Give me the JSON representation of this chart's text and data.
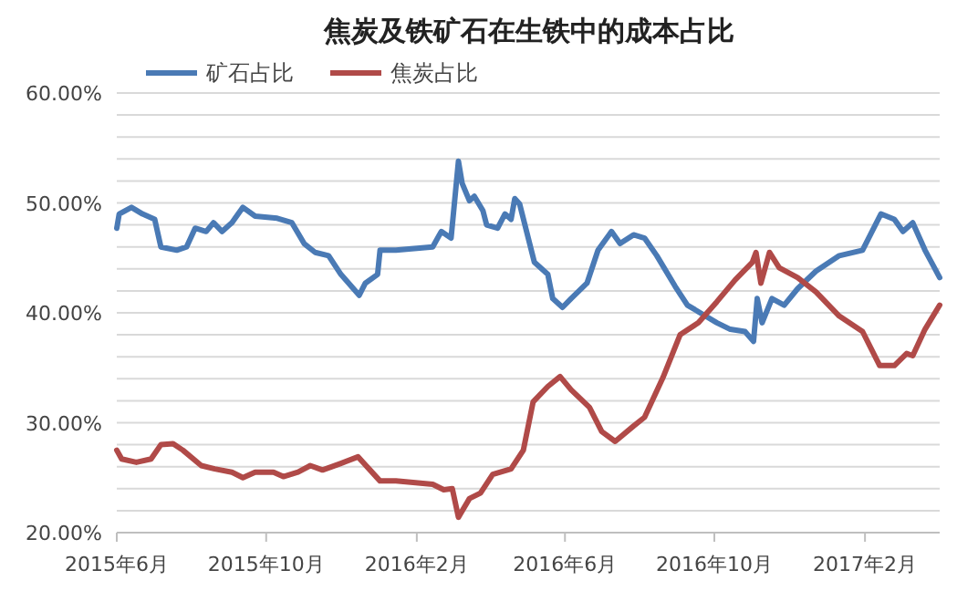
{
  "chart_data": {
    "type": "line",
    "title": "焦炭及铁矿石在生铁中的成本占比",
    "legend": "top",
    "grid": "y",
    "line_style": "solid",
    "marker": "none",
    "xlim": [
      "2015-06-01",
      "2017-04-03"
    ],
    "xticks": [
      {
        "value": "2015-06-01",
        "label": "2015年6月"
      },
      {
        "value": "2015-10-01",
        "label": "2015年10月"
      },
      {
        "value": "2016-02-01",
        "label": "2016年2月"
      },
      {
        "value": "2016-06-01",
        "label": "2016年6月"
      },
      {
        "value": "2016-10-01",
        "label": "2016年10月"
      },
      {
        "value": "2017-02-01",
        "label": "2017年2月"
      }
    ],
    "ylim": [
      20,
      60
    ],
    "yticks": [
      {
        "value": 20,
        "label": "20.00%"
      },
      {
        "value": 22,
        "label": null
      },
      {
        "value": 24,
        "label": null
      },
      {
        "value": 26,
        "label": null
      },
      {
        "value": 28,
        "label": null
      },
      {
        "value": 30,
        "label": "30.00%"
      },
      {
        "value": 32,
        "label": null
      },
      {
        "value": 34,
        "label": null
      },
      {
        "value": 36,
        "label": null
      },
      {
        "value": 38,
        "label": null
      },
      {
        "value": 40,
        "label": "40.00%"
      },
      {
        "value": 42,
        "label": null
      },
      {
        "value": 44,
        "label": null
      },
      {
        "value": 46,
        "label": null
      },
      {
        "value": 48,
        "label": null
      },
      {
        "value": 50,
        "label": "50.00%"
      },
      {
        "value": 52,
        "label": null
      },
      {
        "value": 54,
        "label": null
      },
      {
        "value": 56,
        "label": null
      },
      {
        "value": 58,
        "label": null
      },
      {
        "value": 60,
        "label": "60.00%"
      }
    ],
    "series": [
      {
        "name": "矿石占比",
        "color": "#4a7ab5",
        "x": [
          "2015-06-01",
          "2015-06-03",
          "2015-06-13",
          "2015-06-22",
          "2015-07-02",
          "2015-07-07",
          "2015-07-20",
          "2015-07-28",
          "2015-08-04",
          "2015-08-13",
          "2015-08-19",
          "2015-08-26",
          "2015-09-03",
          "2015-09-12",
          "2015-09-22",
          "2015-10-10",
          "2015-10-22",
          "2015-11-01",
          "2015-11-10",
          "2015-11-21",
          "2015-12-01",
          "2015-12-16",
          "2015-12-21",
          "2015-12-31",
          "2016-01-02",
          "2016-01-15",
          "2016-02-14",
          "2016-02-21",
          "2016-02-29",
          "2016-03-06",
          "2016-03-09",
          "2016-03-15",
          "2016-03-19",
          "2016-03-26",
          "2016-03-29",
          "2016-04-07",
          "2016-04-13",
          "2016-04-18",
          "2016-04-21",
          "2016-04-25",
          "2016-05-07",
          "2016-05-18",
          "2016-05-22",
          "2016-05-30",
          "2016-06-06",
          "2016-06-19",
          "2016-06-28",
          "2016-07-09",
          "2016-07-16",
          "2016-07-27",
          "2016-08-05",
          "2016-08-15",
          "2016-08-30",
          "2016-09-09",
          "2016-09-21",
          "2016-10-03",
          "2016-10-14",
          "2016-10-26",
          "2016-11-02",
          "2016-11-05",
          "2016-11-09",
          "2016-11-17",
          "2016-11-27",
          "2016-12-08",
          "2016-12-23",
          "2017-01-11",
          "2017-01-30",
          "2017-02-14",
          "2017-02-25",
          "2017-03-04",
          "2017-03-12",
          "2017-03-22",
          "2017-04-03"
        ],
        "values": [
          47.7,
          49.0,
          49.6,
          49.0,
          48.5,
          46.0,
          45.7,
          46.0,
          47.7,
          47.4,
          48.2,
          47.4,
          48.2,
          49.6,
          48.8,
          48.6,
          48.2,
          46.3,
          45.5,
          45.2,
          43.5,
          41.6,
          42.7,
          43.5,
          45.7,
          45.7,
          46.0,
          47.4,
          46.8,
          53.8,
          51.8,
          50.2,
          50.6,
          49.3,
          48.0,
          47.7,
          49.0,
          48.5,
          50.4,
          49.9,
          44.6,
          43.5,
          41.3,
          40.5,
          41.3,
          42.7,
          45.7,
          47.4,
          46.3,
          47.1,
          46.8,
          45.2,
          42.4,
          40.7,
          39.9,
          39.1,
          38.5,
          38.3,
          37.4,
          41.3,
          39.1,
          41.3,
          40.7,
          42.2,
          43.8,
          45.2,
          45.7,
          49.0,
          48.5,
          47.4,
          48.2,
          45.7,
          43.2
        ]
      },
      {
        "name": "焦炭占比",
        "color": "#b04a48",
        "x": [
          "2015-06-01",
          "2015-06-05",
          "2015-06-17",
          "2015-06-29",
          "2015-07-07",
          "2015-07-17",
          "2015-07-25",
          "2015-08-09",
          "2015-08-20",
          "2015-09-03",
          "2015-09-12",
          "2015-09-22",
          "2015-10-07",
          "2015-10-15",
          "2015-10-27",
          "2015-11-06",
          "2015-11-16",
          "2015-12-01",
          "2015-12-15",
          "2015-12-24",
          "2016-01-02",
          "2016-01-15",
          "2016-02-14",
          "2016-02-23",
          "2016-03-01",
          "2016-03-06",
          "2016-03-15",
          "2016-03-24",
          "2016-04-03",
          "2016-04-18",
          "2016-04-28",
          "2016-05-06",
          "2016-05-18",
          "2016-05-28",
          "2016-06-06",
          "2016-06-21",
          "2016-07-01",
          "2016-07-12",
          "2016-07-27",
          "2016-08-05",
          "2016-08-20",
          "2016-09-03",
          "2016-09-18",
          "2016-10-03",
          "2016-10-18",
          "2016-11-01",
          "2016-11-04",
          "2016-11-08",
          "2016-11-15",
          "2016-11-23",
          "2016-12-08",
          "2016-12-23",
          "2017-01-11",
          "2017-01-30",
          "2017-02-13",
          "2017-02-25",
          "2017-03-07",
          "2017-03-12",
          "2017-03-22",
          "2017-04-03"
        ],
        "values": [
          27.5,
          26.7,
          26.4,
          26.7,
          28.0,
          28.1,
          27.5,
          26.1,
          25.8,
          25.5,
          25.0,
          25.5,
          25.5,
          25.1,
          25.5,
          26.1,
          25.7,
          26.3,
          26.9,
          25.8,
          24.7,
          24.7,
          24.4,
          23.9,
          24.0,
          21.4,
          23.1,
          23.6,
          25.3,
          25.8,
          27.5,
          31.9,
          33.3,
          34.2,
          33.0,
          31.4,
          29.2,
          28.3,
          29.7,
          30.5,
          34.1,
          38.0,
          39.1,
          41.0,
          43.0,
          44.6,
          45.5,
          42.7,
          45.5,
          44.1,
          43.2,
          41.9,
          39.7,
          38.3,
          35.2,
          35.2,
          36.3,
          36.1,
          38.5,
          40.7
        ]
      }
    ]
  }
}
